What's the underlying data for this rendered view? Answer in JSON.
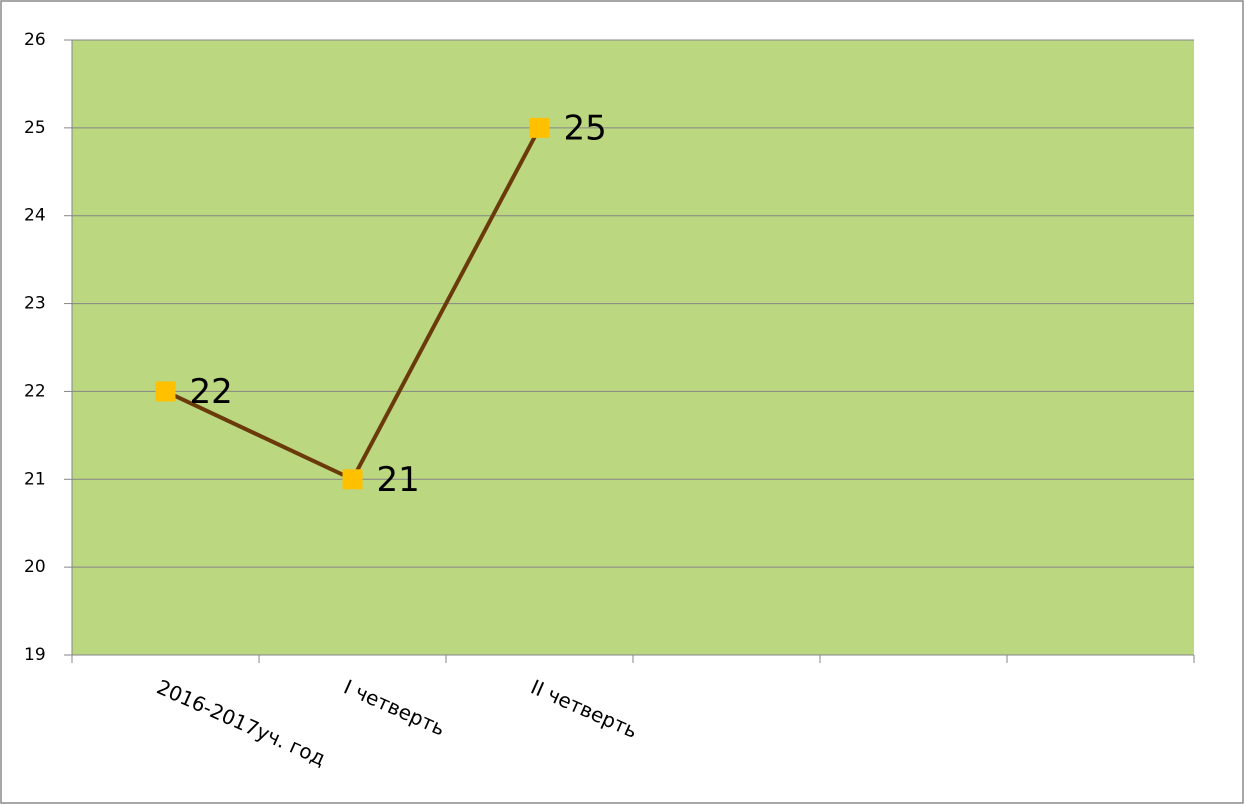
{
  "chart_data": {
    "type": "line",
    "categories": [
      "2016-2017уч. год",
      "I четверть",
      "II четверть",
      null,
      null,
      null
    ],
    "series": [
      {
        "color": "#6b3a0a",
        "marker_color": "#ffc000",
        "values": [
          22,
          21,
          25,
          null,
          null,
          null
        ]
      }
    ],
    "ylim": [
      19,
      26
    ],
    "yticks": [
      19,
      20,
      21,
      22,
      23,
      24,
      25,
      26
    ],
    "grid": true,
    "plot_background": "#bbd780"
  }
}
